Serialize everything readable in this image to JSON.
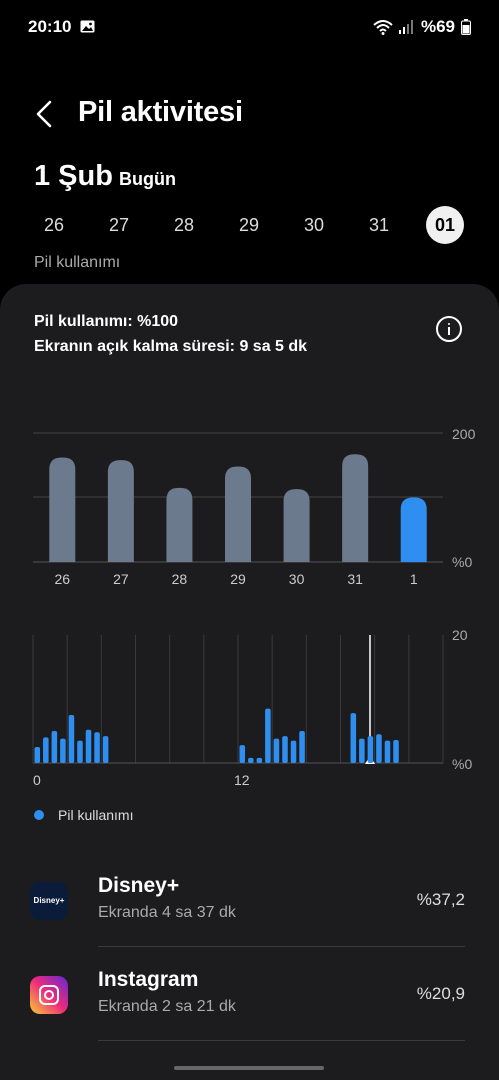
{
  "status": {
    "time": "20:10",
    "battery": "%69"
  },
  "header": {
    "title": "Pil aktivitesi"
  },
  "date": {
    "big": "1 Şub",
    "small": "Bugün"
  },
  "days": [
    {
      "label": "26",
      "selected": false
    },
    {
      "label": "27",
      "selected": false
    },
    {
      "label": "28",
      "selected": false
    },
    {
      "label": "29",
      "selected": false
    },
    {
      "label": "30",
      "selected": false
    },
    {
      "label": "31",
      "selected": false
    },
    {
      "label": "01",
      "selected": true
    }
  ],
  "section_label": "Pil kullanımı",
  "summary": {
    "usage": "Pil kullanımı: %100",
    "screen_time": "Ekranın açık kalma süresi: 9 sa 5 dk"
  },
  "chart_data": [
    {
      "type": "bar",
      "categories": [
        "26",
        "27",
        "28",
        "29",
        "30",
        "31",
        "1"
      ],
      "values": [
        162,
        158,
        115,
        148,
        113,
        167,
        100
      ],
      "ylim": [
        0,
        200
      ],
      "ytick_labels": [
        "200",
        "%0"
      ],
      "highlight_color": "#2f8ff0",
      "bar_color": "#6b7a8c"
    },
    {
      "type": "bar",
      "x_labels": [
        "0",
        "12"
      ],
      "ytick_labels": [
        "20",
        "%0"
      ],
      "ylim": [
        0,
        20
      ],
      "series": [
        {
          "values": [
            2.5,
            4,
            5,
            3.8,
            7.5,
            3.5,
            5.2,
            4.8,
            4.2,
            0,
            0,
            0,
            0,
            0,
            0,
            0,
            0,
            0,
            0,
            0,
            0,
            0,
            0,
            0,
            2.8,
            0.8,
            0.8,
            8.5,
            3.8,
            4.2,
            3.5,
            5,
            0,
            0,
            0,
            0,
            0,
            7.8,
            3.8,
            4.2,
            4.5,
            3.5,
            3.6
          ]
        }
      ],
      "legend": "Pil kullanımı",
      "bar_color": "#2f8ff0"
    }
  ],
  "apps": [
    {
      "name": "Disney+",
      "sub": "Ekranda 4 sa 37 dk",
      "pct": "%37,2",
      "logo": "Disney+"
    },
    {
      "name": "Instagram",
      "sub": "Ekranda 2 sa 21 dk",
      "pct": "%20,9"
    }
  ]
}
